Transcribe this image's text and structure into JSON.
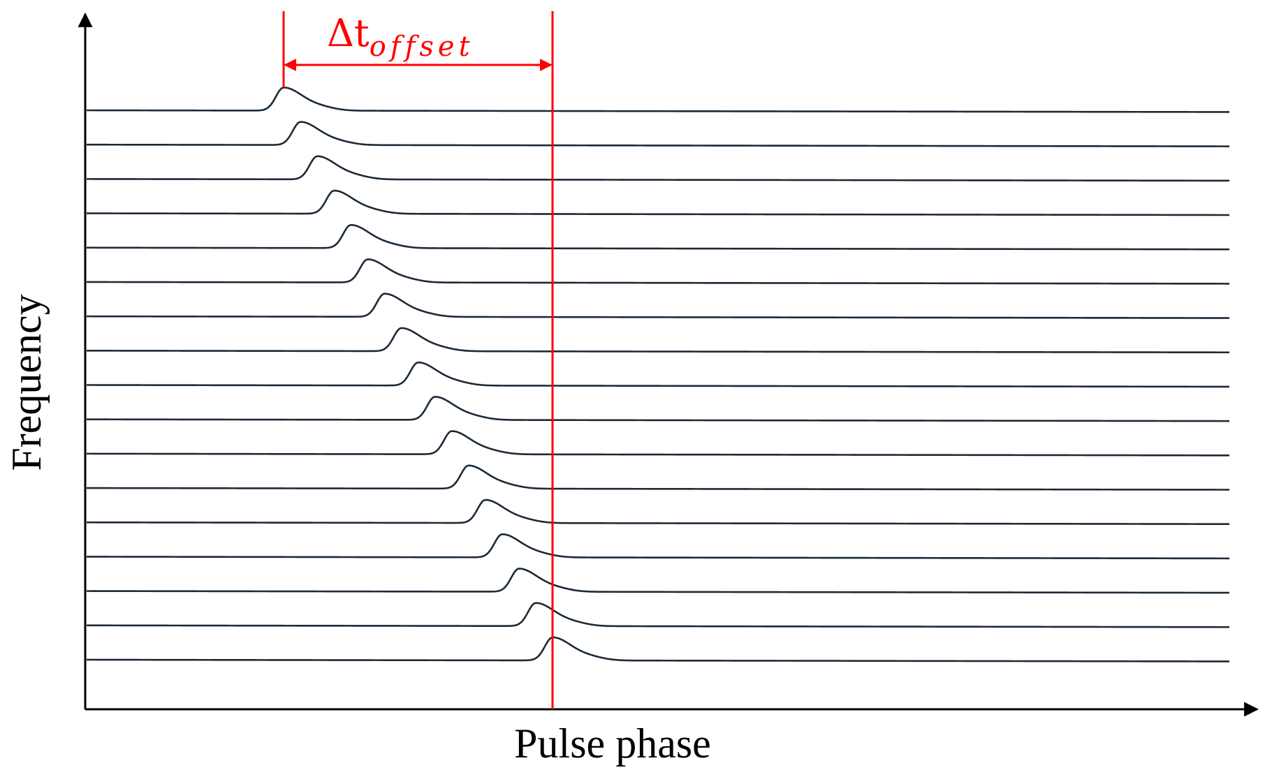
{
  "labels": {
    "x_axis": "Pulse phase",
    "y_axis": "Frequency",
    "offset_symbol": "Δt",
    "offset_subscript": "offset"
  },
  "chart_data": {
    "type": "line",
    "description_kind": "stacked pulse profiles vs. frequency (dispersion sweep)",
    "xlabel": "Pulse phase",
    "ylabel": "Frequency",
    "series_count": 17,
    "annotation": "Δt_offset"
  },
  "colors": {
    "trace": "#1b2a38",
    "axis": "#000000",
    "marker": "#ff0000"
  }
}
